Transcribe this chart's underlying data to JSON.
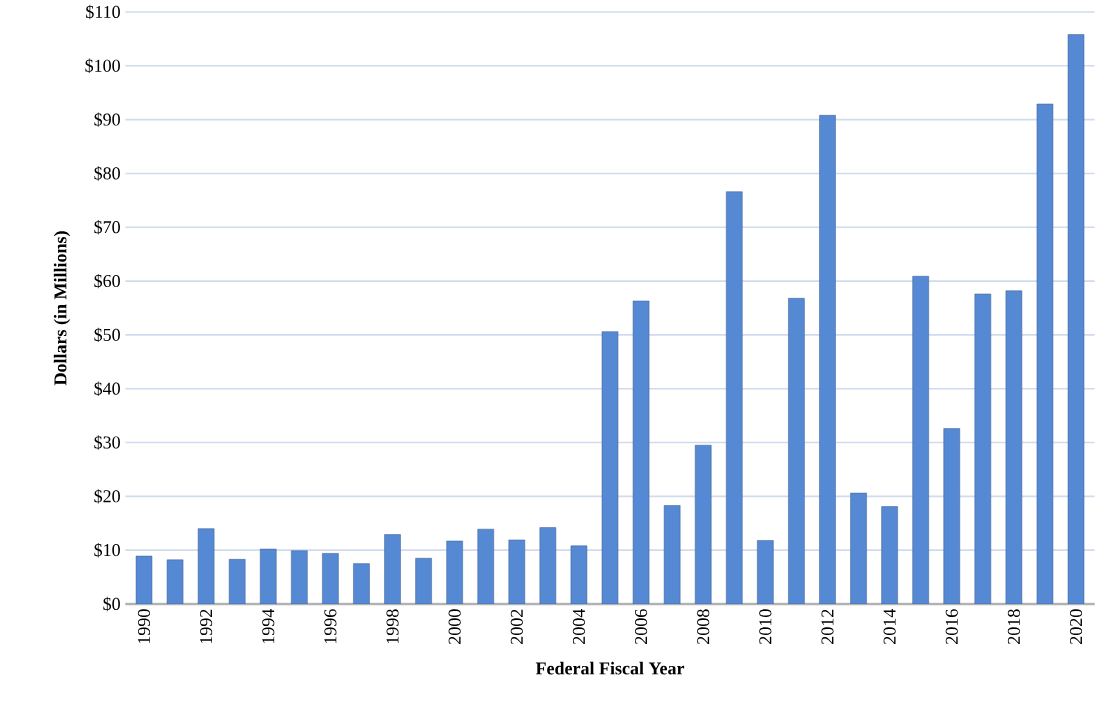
{
  "chart_data": {
    "type": "bar",
    "xlabel": "Federal Fiscal Year",
    "ylabel": "Dollars (in Millions)",
    "categories": [
      "1990",
      null,
      "1992",
      null,
      "1994",
      null,
      "1996",
      null,
      "1998",
      null,
      "2000",
      null,
      "2002",
      null,
      "2004",
      null,
      "2006",
      null,
      "2008",
      null,
      "2010",
      null,
      "2012",
      null,
      "2014",
      null,
      "2016",
      null,
      "2018",
      null,
      "2020"
    ],
    "values": [
      8.9,
      8.2,
      14.0,
      8.3,
      10.2,
      9.9,
      9.4,
      7.5,
      12.9,
      8.5,
      11.7,
      13.9,
      11.9,
      14.2,
      10.8,
      50.6,
      56.3,
      18.3,
      29.5,
      76.6,
      11.8,
      56.8,
      90.8,
      20.6,
      18.1,
      60.9,
      32.6,
      57.6,
      58.2,
      92.9,
      105.8
    ],
    "color": "#5689d4",
    "ylim": [
      0,
      110
    ],
    "yticks": [
      {
        "value": 0,
        "label": "$0"
      },
      {
        "value": 10,
        "label": "$10"
      },
      {
        "value": 20,
        "label": "$20"
      },
      {
        "value": 30,
        "label": "$30"
      },
      {
        "value": 40,
        "label": "$40"
      },
      {
        "value": 50,
        "label": "$50"
      },
      {
        "value": 60,
        "label": "$60"
      },
      {
        "value": 70,
        "label": "$70"
      },
      {
        "value": 80,
        "label": "$80"
      },
      {
        "value": 90,
        "label": "$90"
      },
      {
        "value": 100,
        "label": "$100"
      },
      {
        "value": 110,
        "label": "$110"
      }
    ],
    "grid": "y"
  }
}
